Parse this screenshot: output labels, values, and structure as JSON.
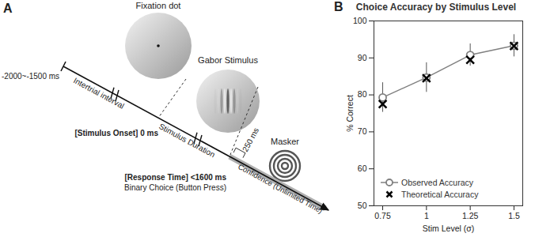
{
  "diagram": {
    "panel_label": "A",
    "fixation_label": "Fixation dot",
    "stimulus_label": "Gabor Stimulus",
    "masker_label": "Masker",
    "start_time": "-2000~-1500 ms",
    "interval_label": "Intertrial interval",
    "onset_label": "[Stimulus Onset] 0 ms",
    "duration_label": "Stimulus Duration",
    "mask_delay": "250 ms",
    "response_label": "[Response Time] <1600 ms",
    "response_action": "Binary Choice (Button Press)",
    "confidence_label": "Confidence (Unlimited Time)"
  },
  "chart_data": {
    "panel_label": "B",
    "type": "line",
    "title": "Choice Accuracy by Stimulus Level",
    "x_label": "Stim Level (σ)",
    "y_label": "% Correct",
    "x": [
      0.75,
      1,
      1.25,
      1.5
    ],
    "series": [
      {
        "name": "Observed Accuracy",
        "color": "#808080",
        "marker": "circle",
        "line_style": "solid",
        "values": [
          79.3,
          84.7,
          90.8,
          93.3
        ],
        "error": [
          4,
          4,
          3,
          3
        ]
      },
      {
        "name": "Theoretical Accuracy",
        "color": "#000000",
        "marker": "x",
        "line_style": "none",
        "values": [
          77.5,
          84.5,
          89.5,
          93.2
        ]
      }
    ],
    "xlim": [
      0.7,
      1.55
    ],
    "xticks": [
      0.75,
      1,
      1.25,
      1.5
    ],
    "ylim": [
      50,
      100
    ],
    "yticks": [
      50,
      60,
      70,
      80,
      90,
      100
    ],
    "grid": false,
    "legend": "lower left"
  }
}
